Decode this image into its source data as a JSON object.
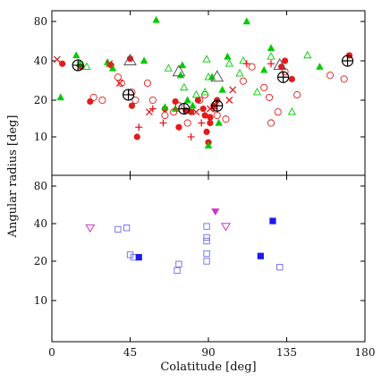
{
  "chart_data": {
    "type": "scatter",
    "xlabel": "Colatitude [deg]",
    "ylabel": "Angular radius [deg]",
    "xlim": [
      0,
      180
    ],
    "x_ticks": [
      0,
      45,
      90,
      135,
      180
    ],
    "panels": [
      {
        "name": "top",
        "ylim": [
          0,
          85
        ],
        "y_ticks": [
          10,
          20,
          40,
          80
        ],
        "y_scale": "log",
        "series": [
          {
            "marker": "filled-circle",
            "color": "#e31a1c",
            "points": [
              [
                6,
                38
              ],
              [
                17,
                36
              ],
              [
                22,
                19.5
              ],
              [
                34,
                37
              ],
              [
                45,
                41.5
              ],
              [
                46,
                18
              ],
              [
                49,
                10
              ],
              [
                65,
                17
              ],
              [
                71,
                19.5
              ],
              [
                73,
                12
              ],
              [
                77,
                16.5
              ],
              [
                80,
                16
              ],
              [
                84,
                20
              ],
              [
                87,
                17
              ],
              [
                88,
                15
              ],
              [
                89,
                11
              ],
              [
                90,
                9
              ],
              [
                91,
                13
              ],
              [
                91,
                14.5
              ],
              [
                93,
                18
              ],
              [
                95,
                20
              ],
              [
                132,
                36
              ],
              [
                134,
                40
              ],
              [
                138,
                29
              ],
              [
                171,
                44
              ]
            ]
          },
          {
            "marker": "filled-triangle",
            "color": "#00cc00",
            "points": [
              [
                5,
                21
              ],
              [
                14,
                44
              ],
              [
                16,
                38
              ],
              [
                32,
                39
              ],
              [
                35,
                35
              ],
              [
                53,
                40
              ],
              [
                60,
                82
              ],
              [
                65,
                17.5
              ],
              [
                71,
                17
              ],
              [
                74,
                31
              ],
              [
                75,
                37
              ],
              [
                78,
                20
              ],
              [
                81,
                18
              ],
              [
                90,
                8.5
              ],
              [
                92,
                30
              ],
              [
                96,
                13
              ],
              [
                98,
                24
              ],
              [
                101,
                43
              ],
              [
                112,
                80
              ],
              [
                122,
                34
              ],
              [
                126,
                50
              ],
              [
                154,
                36
              ]
            ]
          },
          {
            "marker": "open-circle",
            "color": "#e31a1c",
            "points": [
              [
                24,
                21
              ],
              [
                29,
                20
              ],
              [
                38,
                30
              ],
              [
                40,
                27
              ],
              [
                46,
                23
              ],
              [
                48,
                20
              ],
              [
                55,
                27
              ],
              [
                58,
                20
              ],
              [
                65,
                15
              ],
              [
                70,
                16
              ],
              [
                73,
                18
              ],
              [
                78,
                13
              ],
              [
                85,
                20
              ],
              [
                88,
                22
              ],
              [
                95,
                15
              ],
              [
                100,
                14
              ],
              [
                110,
                28
              ],
              [
                115,
                36
              ],
              [
                122,
                25
              ],
              [
                125,
                21
              ],
              [
                126,
                13
              ],
              [
                130,
                16
              ],
              [
                134,
                33
              ],
              [
                141,
                22
              ],
              [
                160,
                31
              ],
              [
                168,
                29
              ]
            ]
          },
          {
            "marker": "open-triangle",
            "color": "#00cc00",
            "points": [
              [
                20,
                36
              ],
              [
                67,
                35
              ],
              [
                76,
                25
              ],
              [
                83,
                22
              ],
              [
                89,
                41
              ],
              [
                88,
                23
              ],
              [
                90,
                30
              ],
              [
                102,
                38
              ],
              [
                108,
                32
              ],
              [
                110,
                40
              ],
              [
                118,
                23
              ],
              [
                126,
                43
              ],
              [
                138,
                16
              ],
              [
                147,
                44
              ]
            ]
          },
          {
            "marker": "cross-x",
            "color": "#e31a1c",
            "points": [
              [
                3,
                41
              ],
              [
                33,
                38
              ],
              [
                39,
                27
              ],
              [
                56,
                16
              ],
              [
                83,
                16
              ],
              [
                91,
                17
              ],
              [
                102,
                20
              ],
              [
                104,
                24
              ]
            ]
          },
          {
            "marker": "plus",
            "color": "#e31a1c",
            "points": [
              [
                50,
                12
              ],
              [
                58,
                17
              ],
              [
                64,
                13
              ],
              [
                80,
                10
              ],
              [
                86,
                13
              ],
              [
                93,
                17
              ],
              [
                112,
                38
              ],
              [
                126,
                38
              ]
            ]
          },
          {
            "marker": "open-circle-cross",
            "color": "#000000",
            "points": [
              [
                15,
                37
              ],
              [
                44,
                22
              ],
              [
                76,
                17
              ],
              [
                95,
                18
              ],
              [
                133,
                30
              ],
              [
                170,
                40
              ]
            ]
          },
          {
            "marker": "open-triangle-large",
            "color": "#555555",
            "points": [
              [
                45,
                40
              ],
              [
                73,
                33
              ],
              [
                95,
                30
              ],
              [
                131,
                37
              ]
            ]
          }
        ]
      },
      {
        "name": "bottom",
        "ylim": [
          0,
          85
        ],
        "y_ticks": [
          10,
          20,
          40,
          80
        ],
        "y_scale": "log",
        "series": [
          {
            "marker": "open-square",
            "color": "#6a6aee",
            "points": [
              [
                38,
                36
              ],
              [
                43,
                37
              ],
              [
                45,
                22.5
              ],
              [
                47,
                21.5
              ],
              [
                72,
                17
              ],
              [
                73,
                19
              ],
              [
                89,
                38
              ],
              [
                89,
                31
              ],
              [
                89,
                29
              ],
              [
                89,
                23
              ],
              [
                89,
                20
              ],
              [
                131,
                18
              ]
            ]
          },
          {
            "marker": "filled-square",
            "color": "#1a1aee",
            "points": [
              [
                50,
                21.5
              ],
              [
                120,
                22
              ],
              [
                127,
                42
              ]
            ]
          },
          {
            "marker": "filled-down-triangle",
            "color": "#cc33cc",
            "points": [
              [
                94,
                50
              ]
            ]
          },
          {
            "marker": "open-down-triangle",
            "color": "#cc33cc",
            "points": [
              [
                22,
                37
              ],
              [
                100,
                38
              ]
            ]
          }
        ]
      }
    ]
  }
}
